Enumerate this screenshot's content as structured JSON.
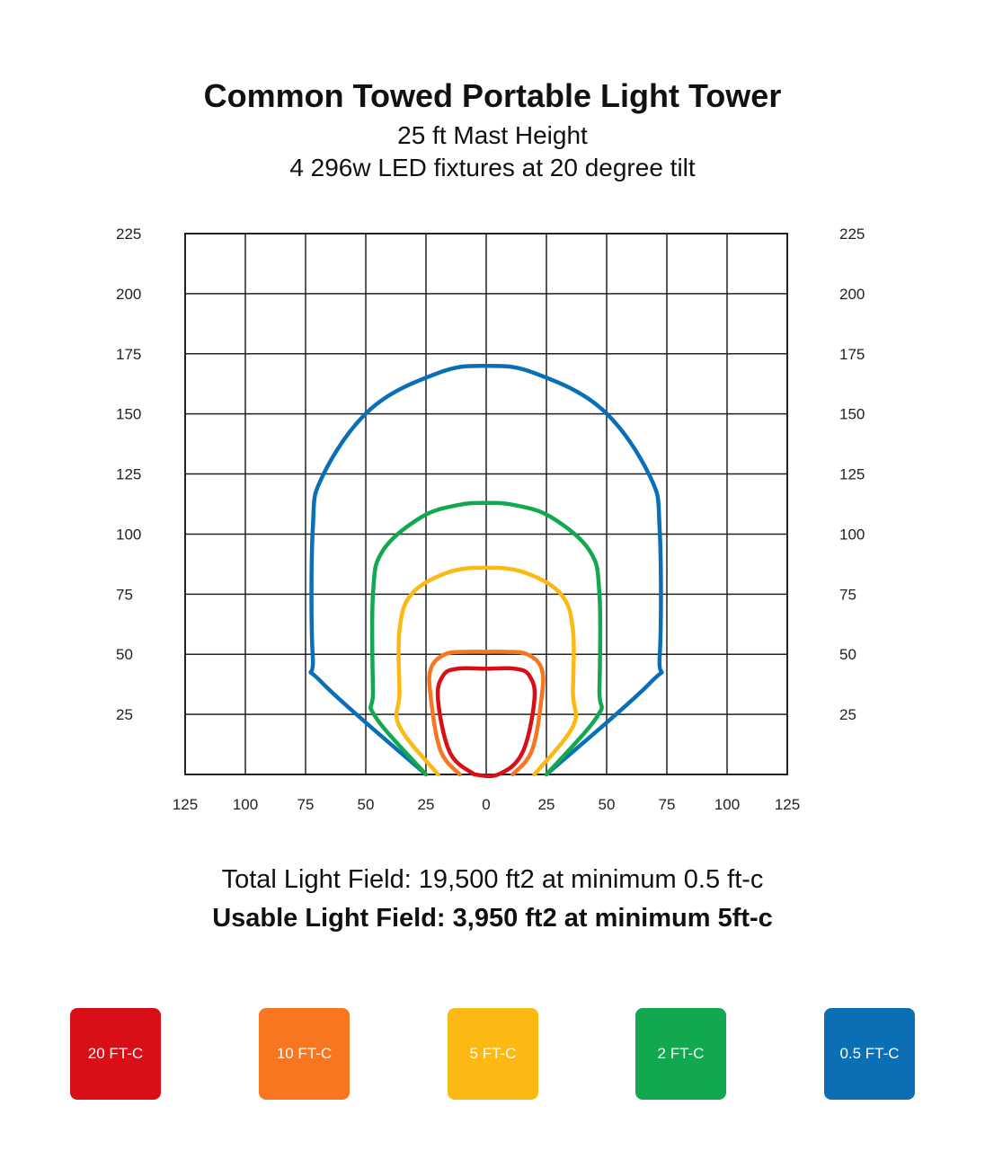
{
  "header": {
    "title": "Common Towed Portable Light Tower",
    "subtitle_line1": "25 ft Mast Height",
    "subtitle_line2": "4 296w LED fixtures at 20 degree tilt"
  },
  "chart_data": {
    "type": "line",
    "xlabel": "",
    "ylabel": "",
    "xlim": [
      -125,
      125
    ],
    "ylim": [
      0,
      225
    ],
    "x_tick_values": [
      -125,
      -100,
      -75,
      -50,
      -25,
      0,
      25,
      50,
      75,
      100,
      125
    ],
    "x_tick_labels": [
      "125",
      "100",
      "75",
      "50",
      "25",
      "0",
      "25",
      "50",
      "75",
      "100",
      "125"
    ],
    "y_tick_values": [
      25,
      50,
      75,
      100,
      125,
      150,
      175,
      200,
      225
    ],
    "y_tick_labels": [
      "25",
      "50",
      "75",
      "100",
      "125",
      "150",
      "175",
      "200",
      "225"
    ],
    "grid": true,
    "grid_step": 25,
    "y_labels_both_sides": true,
    "series": [
      {
        "name": "0.5 FT-C",
        "color": "#0a6fb5",
        "points": [
          [
            -25,
            0
          ],
          [
            -68,
            38
          ],
          [
            -72,
            49
          ],
          [
            -72,
            102
          ],
          [
            -68,
            124
          ],
          [
            -48,
            152
          ],
          [
            -20,
            167
          ],
          [
            0,
            170
          ],
          [
            20,
            167
          ],
          [
            48,
            152
          ],
          [
            68,
            124
          ],
          [
            72,
            102
          ],
          [
            72,
            49
          ],
          [
            68,
            38
          ],
          [
            25,
            0
          ]
        ]
      },
      {
        "name": "2 FT-C",
        "color": "#12a84f",
        "points": [
          [
            -25,
            0
          ],
          [
            -46,
            24
          ],
          [
            -47,
            35
          ],
          [
            -47,
            75
          ],
          [
            -43,
            93
          ],
          [
            -27,
            107
          ],
          [
            -12,
            112
          ],
          [
            0,
            113
          ],
          [
            12,
            112
          ],
          [
            27,
            107
          ],
          [
            43,
            93
          ],
          [
            47,
            75
          ],
          [
            47,
            35
          ],
          [
            46,
            24
          ],
          [
            25,
            0
          ]
        ]
      },
      {
        "name": "5 FT-C",
        "color": "#fdb913",
        "points": [
          [
            -20,
            0
          ],
          [
            -36,
            20
          ],
          [
            -36,
            34
          ],
          [
            -36,
            60
          ],
          [
            -31,
            75
          ],
          [
            -16,
            84
          ],
          [
            0,
            86
          ],
          [
            16,
            84
          ],
          [
            31,
            75
          ],
          [
            36,
            60
          ],
          [
            36,
            34
          ],
          [
            36,
            20
          ],
          [
            20,
            0
          ]
        ]
      },
      {
        "name": "10 FT-C",
        "color": "#f7761f",
        "points": [
          [
            -11,
            0
          ],
          [
            -19,
            10
          ],
          [
            -23,
            32
          ],
          [
            -23,
            44
          ],
          [
            -17,
            50
          ],
          [
            -8,
            51
          ],
          [
            0,
            51
          ],
          [
            8,
            51
          ],
          [
            17,
            50
          ],
          [
            23,
            44
          ],
          [
            23,
            32
          ],
          [
            19,
            10
          ],
          [
            11,
            0
          ]
        ]
      },
      {
        "name": "20 FT-C",
        "color": "#d80f16",
        "points": [
          [
            -5,
            0
          ],
          [
            -15,
            9
          ],
          [
            -20,
            31
          ],
          [
            -18,
            41
          ],
          [
            -12,
            44
          ],
          [
            0,
            44
          ],
          [
            12,
            44
          ],
          [
            18,
            41
          ],
          [
            20,
            31
          ],
          [
            15,
            9
          ],
          [
            5,
            0
          ],
          [
            -5,
            0
          ]
        ]
      }
    ]
  },
  "summary": {
    "total": "Total Light Field: 19,500 ft2 at minimum 0.5 ft-c",
    "usable": "Usable Light Field: 3,950 ft2 at minimum 5ft-c"
  },
  "legend": {
    "items": [
      {
        "label": "20 FT-C",
        "color": "#d80f16"
      },
      {
        "label": "10 FT-C",
        "color": "#f7761f"
      },
      {
        "label": "5 FT-C",
        "color": "#fdb913"
      },
      {
        "label": "2 FT-C",
        "color": "#12a84f"
      },
      {
        "label": "0.5 FT-C",
        "color": "#0a6fb5"
      }
    ]
  }
}
